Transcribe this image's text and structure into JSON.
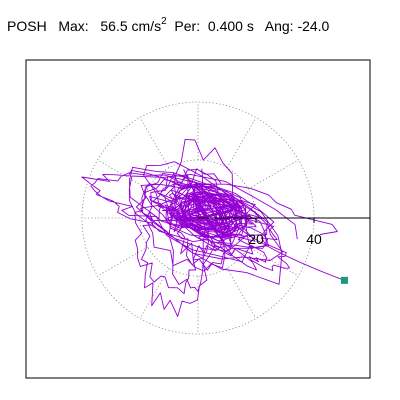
{
  "header": {
    "station": "POSH",
    "max_label": "Max:",
    "max_value": "56.5 cm/s",
    "max_exponent": "2",
    "per_label": "Per:",
    "per_value": "0.400 s",
    "ang_label": "Ang:",
    "ang_value": "-24.0"
  },
  "chart_data": {
    "type": "scatter",
    "subtype": "polar particle-motion orbit",
    "title": "",
    "units": "cm/s^2",
    "max_amplitude": 56.5,
    "period_s": 0.4,
    "angle_deg": -24.0,
    "radial_ticks": [
      20,
      40
    ],
    "rings": [
      20,
      40
    ],
    "spokes_deg": [
      0,
      30,
      60,
      90,
      120,
      150,
      180,
      210,
      240,
      270,
      300,
      330
    ],
    "grid": true,
    "axis_direction": "east",
    "colors": {
      "trace": "#9400d3",
      "grid": "#888888",
      "axis": "#000000",
      "end_marker": "#1a9a78"
    },
    "end_point": [
      50.5,
      -21.5
    ],
    "trace_bursts": [
      {
        "x": 4,
        "y": 2,
        "rx": 13,
        "ry": 9,
        "tilt": -24,
        "loops": 34,
        "dx": 0,
        "dy": 0,
        "points": 320
      },
      {
        "x": 2,
        "y": 1,
        "rx": 30,
        "ry": 13,
        "tilt": -24,
        "loops": 10,
        "dx": 0,
        "dy": 0,
        "points": 180
      },
      {
        "x": -3,
        "y": 3,
        "rx": 44,
        "ry": 12,
        "tilt": -17,
        "loops": 3,
        "dx": 0,
        "dy": 0,
        "points": 120
      },
      {
        "x": 0,
        "y": -2,
        "rx": 22,
        "ry": 27,
        "tilt": 35,
        "loops": 4,
        "dx": 0,
        "dy": 0,
        "points": 110
      },
      {
        "x": 9,
        "y": -6,
        "rx": 36,
        "ry": 10,
        "tilt": -32,
        "loops": 2,
        "dx": 0,
        "dy": 0,
        "points": 90
      },
      {
        "x": -10,
        "y": -8,
        "rx": 18,
        "ry": 30,
        "tilt": 12,
        "loops": 2,
        "dx": 0,
        "dy": 0,
        "points": 80
      }
    ]
  }
}
